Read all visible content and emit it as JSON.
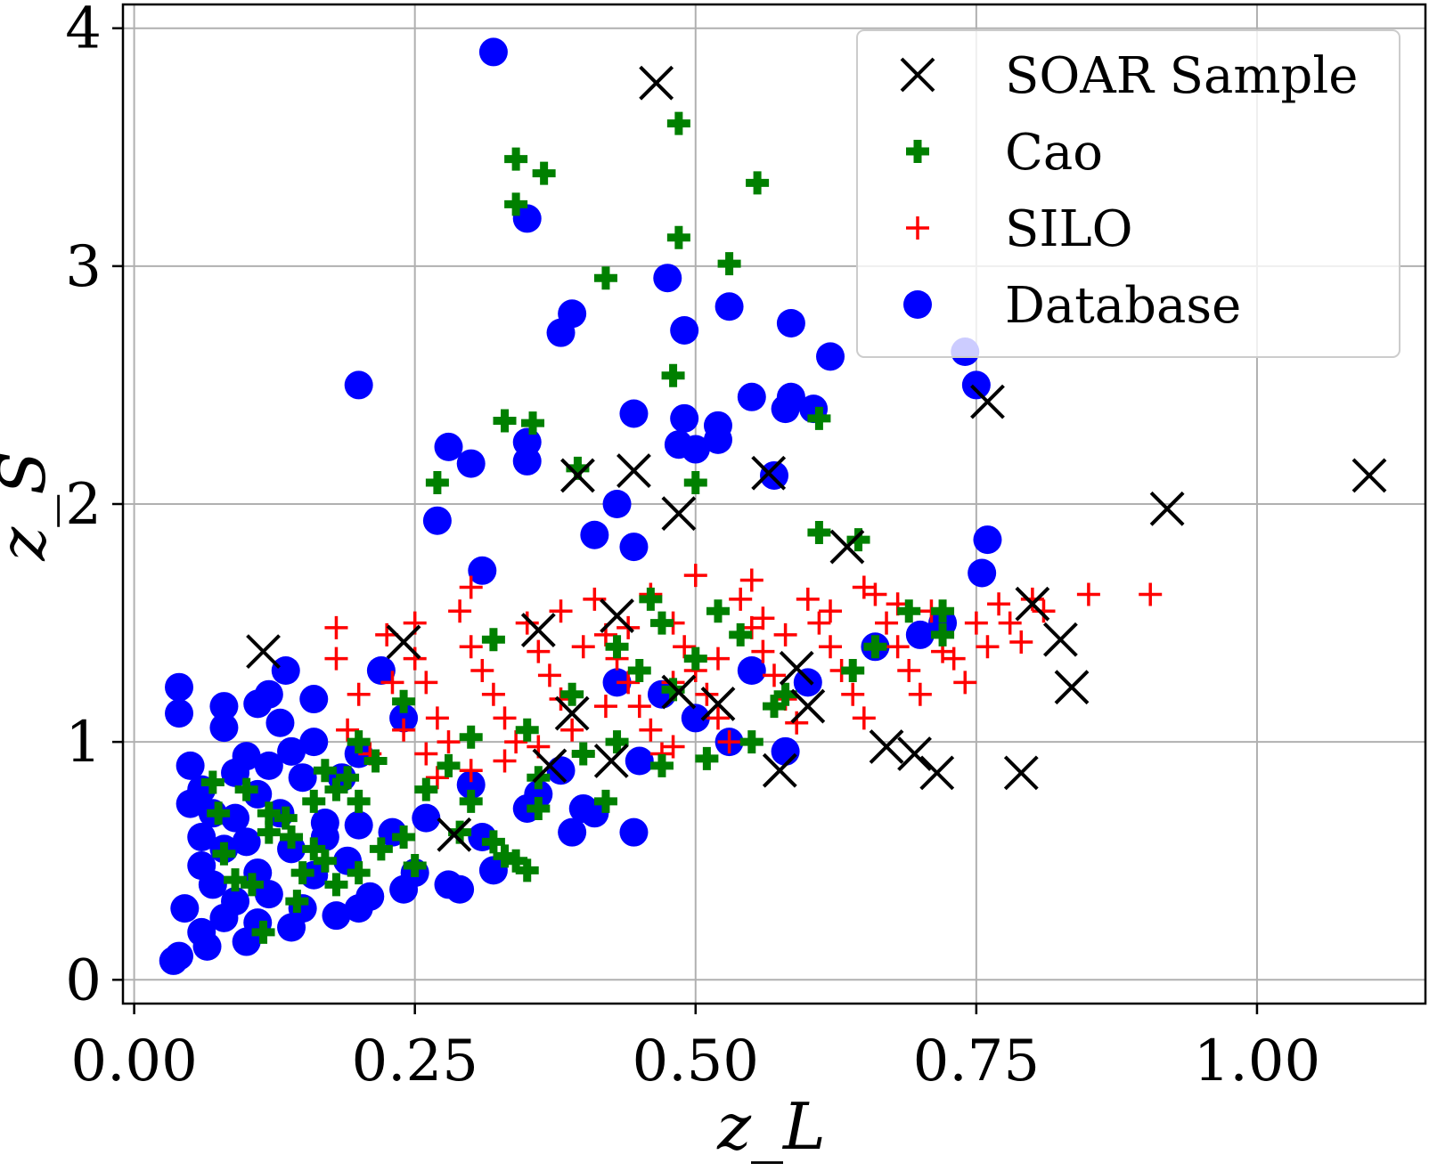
{
  "chart_data": {
    "type": "scatter",
    "title": "",
    "xlabel": "z_L",
    "ylabel": "z_S",
    "xlim": [
      -0.01,
      1.15
    ],
    "ylim": [
      -0.1,
      4.1
    ],
    "grid": true,
    "legend_position": "top-right",
    "x_ticks": [
      0.0,
      0.25,
      0.5,
      0.75,
      1.0
    ],
    "x_tick_labels": [
      "0.00",
      "0.25",
      "0.50",
      "0.75",
      "1.00"
    ],
    "y_ticks": [
      0,
      1,
      2,
      3,
      4
    ],
    "y_tick_labels": [
      "0",
      "1",
      "2",
      "3",
      "4"
    ],
    "colors": {
      "database": "#0000ff",
      "silo": "#ff0000",
      "cao": "#008000",
      "soar": "#000000",
      "grid": "#b0b0b0"
    },
    "series": [
      {
        "name": "Database",
        "marker": "circle",
        "points": [
          [
            0.32,
            3.9
          ],
          [
            0.2,
            2.5
          ],
          [
            0.35,
            3.2
          ],
          [
            0.38,
            2.72
          ],
          [
            0.39,
            2.8
          ],
          [
            0.475,
            2.95
          ],
          [
            0.49,
            2.73
          ],
          [
            0.53,
            2.83
          ],
          [
            0.585,
            2.76
          ],
          [
            0.62,
            2.62
          ],
          [
            0.74,
            2.64
          ],
          [
            0.75,
            2.5
          ],
          [
            0.55,
            2.45
          ],
          [
            0.585,
            2.45
          ],
          [
            0.58,
            2.4
          ],
          [
            0.605,
            2.4
          ],
          [
            0.445,
            2.38
          ],
          [
            0.49,
            2.36
          ],
          [
            0.52,
            2.33
          ],
          [
            0.52,
            2.27
          ],
          [
            0.485,
            2.25
          ],
          [
            0.5,
            2.23
          ],
          [
            0.28,
            2.24
          ],
          [
            0.3,
            2.17
          ],
          [
            0.35,
            2.26
          ],
          [
            0.35,
            2.18
          ],
          [
            0.43,
            2.0
          ],
          [
            0.27,
            1.93
          ],
          [
            0.41,
            1.87
          ],
          [
            0.445,
            1.82
          ],
          [
            0.31,
            1.72
          ],
          [
            0.57,
            2.12
          ],
          [
            0.76,
            1.85
          ],
          [
            0.755,
            1.71
          ],
          [
            0.04,
            1.23
          ],
          [
            0.04,
            1.12
          ],
          [
            0.08,
            1.15
          ],
          [
            0.11,
            1.16
          ],
          [
            0.12,
            1.2
          ],
          [
            0.135,
            1.3
          ],
          [
            0.16,
            1.18
          ],
          [
            0.13,
            1.08
          ],
          [
            0.08,
            1.06
          ],
          [
            0.14,
            0.96
          ],
          [
            0.1,
            0.94
          ],
          [
            0.12,
            0.9
          ],
          [
            0.09,
            0.87
          ],
          [
            0.15,
            0.85
          ],
          [
            0.06,
            0.8
          ],
          [
            0.11,
            0.78
          ],
          [
            0.05,
            0.74
          ],
          [
            0.07,
            0.7
          ],
          [
            0.09,
            0.68
          ],
          [
            0.13,
            0.7
          ],
          [
            0.17,
            0.66
          ],
          [
            0.06,
            0.6
          ],
          [
            0.1,
            0.58
          ],
          [
            0.08,
            0.55
          ],
          [
            0.14,
            0.55
          ],
          [
            0.19,
            0.5
          ],
          [
            0.06,
            0.48
          ],
          [
            0.11,
            0.45
          ],
          [
            0.16,
            0.44
          ],
          [
            0.07,
            0.4
          ],
          [
            0.12,
            0.36
          ],
          [
            0.09,
            0.33
          ],
          [
            0.045,
            0.3
          ],
          [
            0.15,
            0.3
          ],
          [
            0.2,
            0.3
          ],
          [
            0.08,
            0.26
          ],
          [
            0.11,
            0.24
          ],
          [
            0.06,
            0.2
          ],
          [
            0.14,
            0.22
          ],
          [
            0.1,
            0.16
          ],
          [
            0.065,
            0.14
          ],
          [
            0.04,
            0.1
          ],
          [
            0.035,
            0.08
          ],
          [
            0.18,
            0.27
          ],
          [
            0.21,
            0.35
          ],
          [
            0.24,
            0.38
          ],
          [
            0.28,
            0.4
          ],
          [
            0.29,
            0.38
          ],
          [
            0.25,
            0.45
          ],
          [
            0.32,
            0.46
          ],
          [
            0.31,
            0.6
          ],
          [
            0.26,
            0.68
          ],
          [
            0.35,
            0.72
          ],
          [
            0.4,
            0.72
          ],
          [
            0.41,
            0.7
          ],
          [
            0.39,
            0.62
          ],
          [
            0.445,
            0.62
          ],
          [
            0.38,
            0.88
          ],
          [
            0.45,
            0.92
          ],
          [
            0.36,
            0.78
          ],
          [
            0.3,
            0.82
          ],
          [
            0.22,
            1.3
          ],
          [
            0.24,
            1.1
          ],
          [
            0.2,
            0.95
          ],
          [
            0.185,
            0.85
          ],
          [
            0.23,
            0.62
          ],
          [
            0.2,
            0.65
          ],
          [
            0.17,
            0.6
          ],
          [
            0.05,
            0.9
          ],
          [
            0.16,
            1.0
          ],
          [
            0.55,
            1.3
          ],
          [
            0.6,
            1.25
          ],
          [
            0.66,
            1.4
          ],
          [
            0.7,
            1.45
          ],
          [
            0.72,
            1.5
          ],
          [
            0.5,
            1.1
          ],
          [
            0.47,
            1.2
          ],
          [
            0.43,
            1.25
          ],
          [
            0.53,
            1.0
          ],
          [
            0.58,
            0.96
          ]
        ]
      },
      {
        "name": "SILO",
        "marker": "plus-thin",
        "points": [
          [
            0.18,
            1.48
          ],
          [
            0.18,
            1.35
          ],
          [
            0.2,
            1.2
          ],
          [
            0.19,
            1.05
          ],
          [
            0.21,
            0.95
          ],
          [
            0.225,
            1.45
          ],
          [
            0.25,
            1.5
          ],
          [
            0.25,
            1.35
          ],
          [
            0.26,
            1.25
          ],
          [
            0.27,
            1.1
          ],
          [
            0.28,
            1.0
          ],
          [
            0.27,
            0.85
          ],
          [
            0.29,
            1.55
          ],
          [
            0.3,
            1.4
          ],
          [
            0.31,
            1.3
          ],
          [
            0.32,
            1.2
          ],
          [
            0.33,
            1.1
          ],
          [
            0.34,
            1.0
          ],
          [
            0.33,
            0.92
          ],
          [
            0.35,
            1.5
          ],
          [
            0.36,
            1.38
          ],
          [
            0.37,
            1.28
          ],
          [
            0.38,
            1.18
          ],
          [
            0.39,
            1.05
          ],
          [
            0.4,
            0.95
          ],
          [
            0.41,
            1.6
          ],
          [
            0.42,
            1.45
          ],
          [
            0.43,
            1.35
          ],
          [
            0.44,
            1.25
          ],
          [
            0.45,
            1.15
          ],
          [
            0.46,
            1.05
          ],
          [
            0.47,
            0.95
          ],
          [
            0.46,
            1.62
          ],
          [
            0.48,
            1.5
          ],
          [
            0.49,
            1.4
          ],
          [
            0.5,
            1.3
          ],
          [
            0.51,
            1.2
          ],
          [
            0.52,
            1.1
          ],
          [
            0.53,
            1.0
          ],
          [
            0.5,
            1.7
          ],
          [
            0.54,
            1.6
          ],
          [
            0.55,
            1.48
          ],
          [
            0.56,
            1.38
          ],
          [
            0.57,
            1.28
          ],
          [
            0.58,
            1.18
          ],
          [
            0.59,
            1.08
          ],
          [
            0.6,
            1.6
          ],
          [
            0.61,
            1.5
          ],
          [
            0.62,
            1.4
          ],
          [
            0.63,
            1.3
          ],
          [
            0.64,
            1.2
          ],
          [
            0.65,
            1.1
          ],
          [
            0.66,
            1.62
          ],
          [
            0.67,
            1.5
          ],
          [
            0.68,
            1.4
          ],
          [
            0.69,
            1.3
          ],
          [
            0.7,
            1.2
          ],
          [
            0.71,
            1.55
          ],
          [
            0.72,
            1.45
          ],
          [
            0.73,
            1.35
          ],
          [
            0.74,
            1.25
          ],
          [
            0.75,
            1.5
          ],
          [
            0.76,
            1.4
          ],
          [
            0.77,
            1.58
          ],
          [
            0.78,
            1.5
          ],
          [
            0.79,
            1.42
          ],
          [
            0.8,
            1.6
          ],
          [
            0.81,
            1.55
          ],
          [
            0.85,
            1.62
          ],
          [
            0.905,
            1.62
          ],
          [
            0.65,
            1.65
          ],
          [
            0.55,
            1.68
          ],
          [
            0.4,
            1.4
          ],
          [
            0.42,
            1.15
          ],
          [
            0.48,
            1.25
          ],
          [
            0.52,
            1.35
          ],
          [
            0.56,
            1.52
          ],
          [
            0.44,
            1.48
          ],
          [
            0.38,
            1.55
          ],
          [
            0.3,
            1.65
          ],
          [
            0.23,
            1.25
          ],
          [
            0.24,
            1.05
          ],
          [
            0.26,
            0.95
          ],
          [
            0.3,
            0.88
          ],
          [
            0.36,
            0.98
          ],
          [
            0.48,
            0.98
          ],
          [
            0.58,
            1.45
          ],
          [
            0.62,
            1.55
          ],
          [
            0.68,
            1.58
          ],
          [
            0.72,
            1.38
          ]
        ]
      },
      {
        "name": "Cao",
        "marker": "plus-thick",
        "points": [
          [
            0.485,
            3.6
          ],
          [
            0.34,
            3.45
          ],
          [
            0.365,
            3.39
          ],
          [
            0.555,
            3.35
          ],
          [
            0.34,
            3.26
          ],
          [
            0.485,
            3.12
          ],
          [
            0.53,
            3.01
          ],
          [
            0.42,
            2.95
          ],
          [
            0.48,
            2.54
          ],
          [
            0.33,
            2.35
          ],
          [
            0.355,
            2.34
          ],
          [
            0.61,
            2.36
          ],
          [
            0.395,
            2.15
          ],
          [
            0.27,
            2.09
          ],
          [
            0.5,
            2.09
          ],
          [
            0.61,
            1.88
          ],
          [
            0.645,
            1.85
          ],
          [
            0.72,
            1.55
          ],
          [
            0.72,
            1.45
          ],
          [
            0.69,
            1.55
          ],
          [
            0.66,
            1.4
          ],
          [
            0.64,
            1.3
          ],
          [
            0.32,
            1.43
          ],
          [
            0.24,
            1.17
          ],
          [
            0.2,
            1.0
          ],
          [
            0.215,
            0.92
          ],
          [
            0.19,
            0.85
          ],
          [
            0.17,
            0.88
          ],
          [
            0.2,
            0.75
          ],
          [
            0.18,
            0.8
          ],
          [
            0.07,
            0.83
          ],
          [
            0.075,
            0.7
          ],
          [
            0.08,
            0.53
          ],
          [
            0.09,
            0.42
          ],
          [
            0.105,
            0.4
          ],
          [
            0.12,
            0.7
          ],
          [
            0.135,
            0.68
          ],
          [
            0.14,
            0.6
          ],
          [
            0.16,
            0.55
          ],
          [
            0.17,
            0.5
          ],
          [
            0.15,
            0.45
          ],
          [
            0.18,
            0.4
          ],
          [
            0.2,
            0.45
          ],
          [
            0.22,
            0.55
          ],
          [
            0.24,
            0.6
          ],
          [
            0.25,
            0.48
          ],
          [
            0.145,
            0.33
          ],
          [
            0.115,
            0.2
          ],
          [
            0.32,
            0.58
          ],
          [
            0.33,
            0.52
          ],
          [
            0.34,
            0.5
          ],
          [
            0.35,
            0.46
          ],
          [
            0.36,
            0.72
          ],
          [
            0.3,
            0.75
          ],
          [
            0.26,
            0.8
          ],
          [
            0.28,
            0.9
          ],
          [
            0.3,
            1.02
          ],
          [
            0.35,
            1.05
          ],
          [
            0.4,
            0.95
          ],
          [
            0.43,
            1.0
          ],
          [
            0.47,
            0.9
          ],
          [
            0.51,
            0.93
          ],
          [
            0.55,
            1.0
          ],
          [
            0.57,
            1.15
          ],
          [
            0.48,
            1.22
          ],
          [
            0.45,
            1.3
          ],
          [
            0.43,
            1.4
          ],
          [
            0.47,
            1.5
          ],
          [
            0.52,
            1.55
          ],
          [
            0.46,
            1.6
          ],
          [
            0.54,
            1.45
          ],
          [
            0.58,
            1.2
          ],
          [
            0.5,
            1.35
          ],
          [
            0.39,
            1.2
          ],
          [
            0.36,
            0.85
          ],
          [
            0.42,
            0.75
          ],
          [
            0.29,
            0.62
          ],
          [
            0.12,
            0.62
          ],
          [
            0.1,
            0.8
          ],
          [
            0.16,
            0.75
          ]
        ]
      },
      {
        "name": "SOAR Sample",
        "marker": "x",
        "points": [
          [
            0.465,
            3.77
          ],
          [
            0.76,
            2.43
          ],
          [
            1.1,
            2.12
          ],
          [
            0.92,
            1.98
          ],
          [
            0.395,
            2.12
          ],
          [
            0.445,
            2.14
          ],
          [
            0.565,
            2.13
          ],
          [
            0.485,
            1.96
          ],
          [
            0.635,
            1.82
          ],
          [
            0.43,
            1.53
          ],
          [
            0.8,
            1.58
          ],
          [
            0.825,
            1.43
          ],
          [
            0.115,
            1.38
          ],
          [
            0.24,
            1.42
          ],
          [
            0.36,
            1.47
          ],
          [
            0.59,
            1.31
          ],
          [
            0.835,
            1.23
          ],
          [
            0.485,
            1.21
          ],
          [
            0.52,
            1.16
          ],
          [
            0.6,
            1.15
          ],
          [
            0.39,
            1.12
          ],
          [
            0.67,
            0.98
          ],
          [
            0.695,
            0.95
          ],
          [
            0.715,
            0.87
          ],
          [
            0.37,
            0.9
          ],
          [
            0.425,
            0.92
          ],
          [
            0.575,
            0.88
          ],
          [
            0.79,
            0.87
          ],
          [
            0.285,
            0.61
          ]
        ]
      }
    ]
  }
}
